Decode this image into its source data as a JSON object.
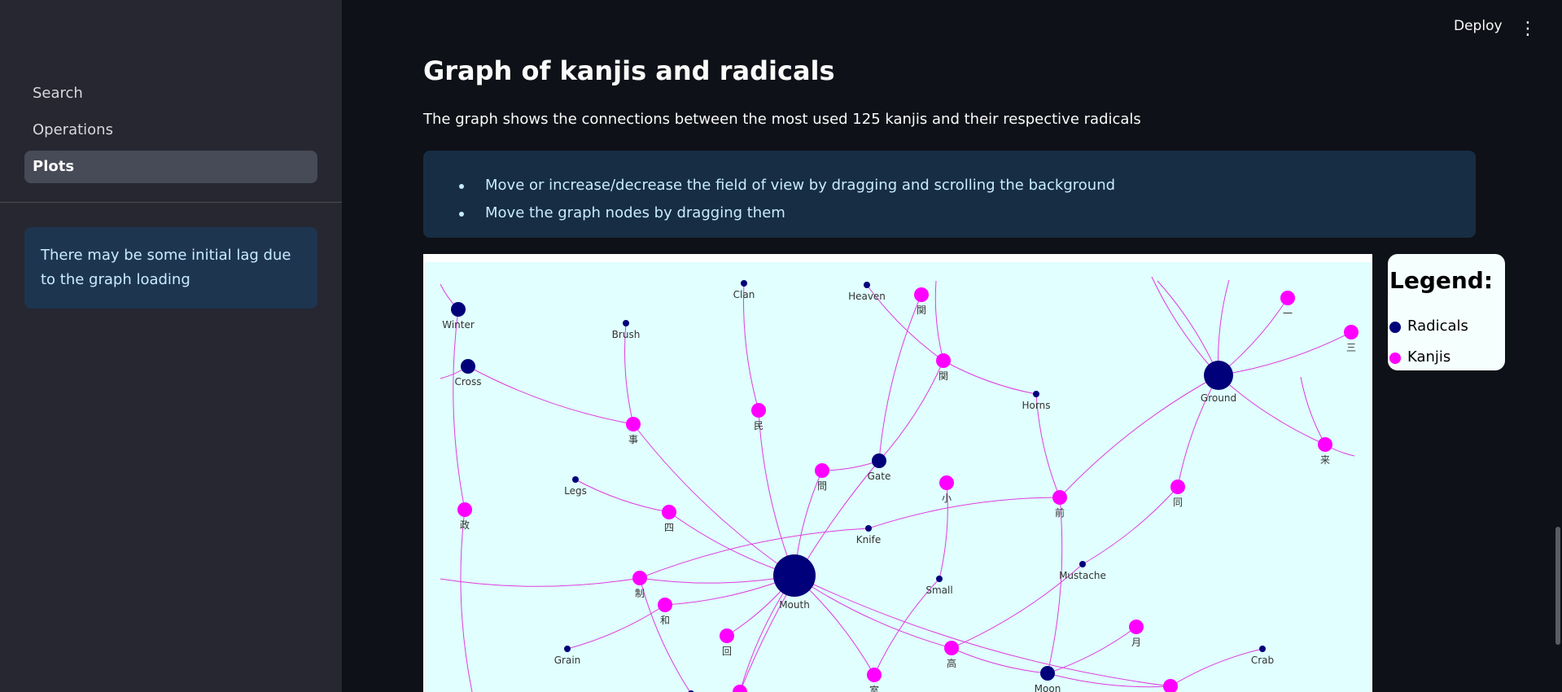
{
  "header": {
    "deploy_label": "Deploy",
    "menu_icon": "kebab-menu-icon"
  },
  "sidebar": {
    "items": [
      {
        "label": "Search",
        "active": false
      },
      {
        "label": "Operations",
        "active": false
      },
      {
        "label": "Plots",
        "active": true
      }
    ],
    "info_text": "There may be some initial lag due to the graph loading"
  },
  "main": {
    "title": "Graph of kanjis and radicals",
    "description": "The graph shows the connections between the most used 125 kanjis and their respective radicals",
    "tips": [
      "Move or increase/decrease the field of view by dragging and scrolling the background",
      "Move the graph nodes by dragging them"
    ]
  },
  "legend": {
    "title": "Legend:",
    "radicals_label": "Radicals",
    "kanjis_label": "Kanjis",
    "radical_color": "#00007a",
    "kanji_color": "#ff00ff"
  },
  "graph": {
    "nodes": [
      {
        "id": "Winter",
        "label": "Winter",
        "type": "radical",
        "size": "small"
      },
      {
        "id": "Clan",
        "label": "Clan",
        "type": "radical",
        "size": "tiny"
      },
      {
        "id": "Heaven",
        "label": "Heaven",
        "type": "radical",
        "size": "tiny"
      },
      {
        "id": "k_kan1",
        "label": "関",
        "type": "kanji"
      },
      {
        "id": "k_ichi",
        "label": "一",
        "type": "kanji"
      },
      {
        "id": "k_san",
        "label": "三",
        "type": "kanji"
      },
      {
        "id": "Brush",
        "label": "Brush",
        "type": "radical",
        "size": "tiny"
      },
      {
        "id": "Cross",
        "label": "Cross",
        "type": "radical",
        "size": "small"
      },
      {
        "id": "k_kan2",
        "label": "関",
        "type": "kanji"
      },
      {
        "id": "Horns",
        "label": "Horns",
        "type": "radical",
        "size": "tiny"
      },
      {
        "id": "Ground",
        "label": "Ground",
        "type": "radical",
        "size": "large"
      },
      {
        "id": "k_min",
        "label": "民",
        "type": "kanji"
      },
      {
        "id": "k_ji",
        "label": "事",
        "type": "kanji"
      },
      {
        "id": "k_rai",
        "label": "来",
        "type": "kanji"
      },
      {
        "id": "k_mon",
        "label": "問",
        "type": "kanji"
      },
      {
        "id": "Gate",
        "label": "Gate",
        "type": "radical",
        "size": "small"
      },
      {
        "id": "k_shou",
        "label": "小",
        "type": "kanji"
      },
      {
        "id": "Legs",
        "label": "Legs",
        "type": "radical",
        "size": "tiny"
      },
      {
        "id": "k_zen",
        "label": "前",
        "type": "kanji"
      },
      {
        "id": "k_dou",
        "label": "同",
        "type": "kanji"
      },
      {
        "id": "k_sei",
        "label": "政",
        "type": "kanji"
      },
      {
        "id": "k_shi",
        "label": "四",
        "type": "kanji"
      },
      {
        "id": "Knife",
        "label": "Knife",
        "type": "radical",
        "size": "tiny"
      },
      {
        "id": "Mustache",
        "label": "Mustache",
        "type": "radical",
        "size": "tiny"
      },
      {
        "id": "k_sei2",
        "label": "制",
        "type": "kanji"
      },
      {
        "id": "Mouth",
        "label": "Mouth",
        "type": "radical",
        "size": "huge"
      },
      {
        "id": "Small",
        "label": "Small",
        "type": "radical",
        "size": "tiny"
      },
      {
        "id": "k_wa",
        "label": "和",
        "type": "kanji"
      },
      {
        "id": "k_tsuki",
        "label": "月",
        "type": "kanji"
      },
      {
        "id": "k_kai",
        "label": "回",
        "type": "kanji"
      },
      {
        "id": "Grain",
        "label": "Grain",
        "type": "radical",
        "size": "tiny"
      },
      {
        "id": "k_kou",
        "label": "高",
        "type": "kanji"
      },
      {
        "id": "Crab",
        "label": "Crab",
        "type": "radical",
        "size": "tiny"
      },
      {
        "id": "k_shitsu",
        "label": "室",
        "type": "kanji"
      },
      {
        "id": "Moon",
        "label": "Moon",
        "type": "radical",
        "size": "small"
      },
      {
        "id": "k_x1",
        "label": "",
        "type": "kanji"
      },
      {
        "id": "k_x2",
        "label": "",
        "type": "kanji"
      },
      {
        "id": "r_x1",
        "label": "",
        "type": "radical",
        "size": "tiny"
      }
    ]
  }
}
